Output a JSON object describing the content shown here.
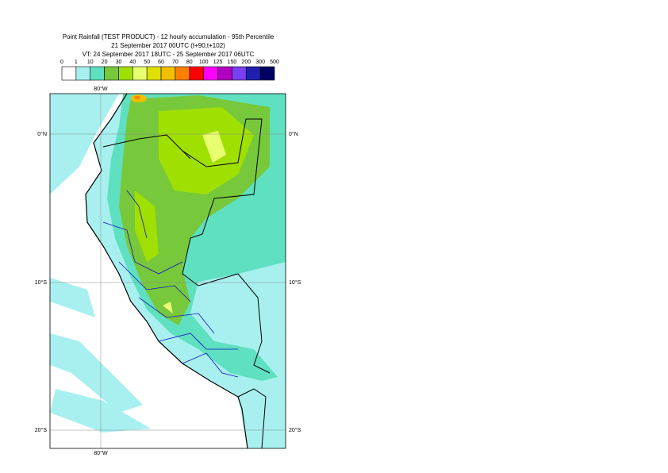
{
  "header": {
    "lines": [
      "Point Rainfall (TEST PRODUCT) - 12 hourly accumulation - 95th Percentile",
      "21 September 2017 00UTC (t+90,t+102)",
      "VT: 24 September 2017 18UTC - 25 September 2017 06UTC"
    ]
  },
  "legend": {
    "thresholds": [
      0,
      1,
      10,
      20,
      30,
      40,
      50,
      60,
      70,
      80,
      100,
      125,
      150,
      200,
      300,
      500
    ],
    "colors": [
      "#ffffff",
      "#a8f0f0",
      "#5fe0c0",
      "#78c83c",
      "#a0e000",
      "#e8ff70",
      "#e0e000",
      "#f0c000",
      "#ff8000",
      "#ff0000",
      "#ff00ff",
      "#b000c0",
      "#7840f0",
      "#2020b0",
      "#000060"
    ]
  },
  "map": {
    "labels": {
      "top_lon": "80°W",
      "bottom_lon": "80°W",
      "lat0_left": "0°N",
      "lat0_right": "0°N",
      "lat10_left": "10°S",
      "lat10_right": "10°S",
      "lat20_left": "20°S",
      "lat20_right": "20°S"
    }
  }
}
